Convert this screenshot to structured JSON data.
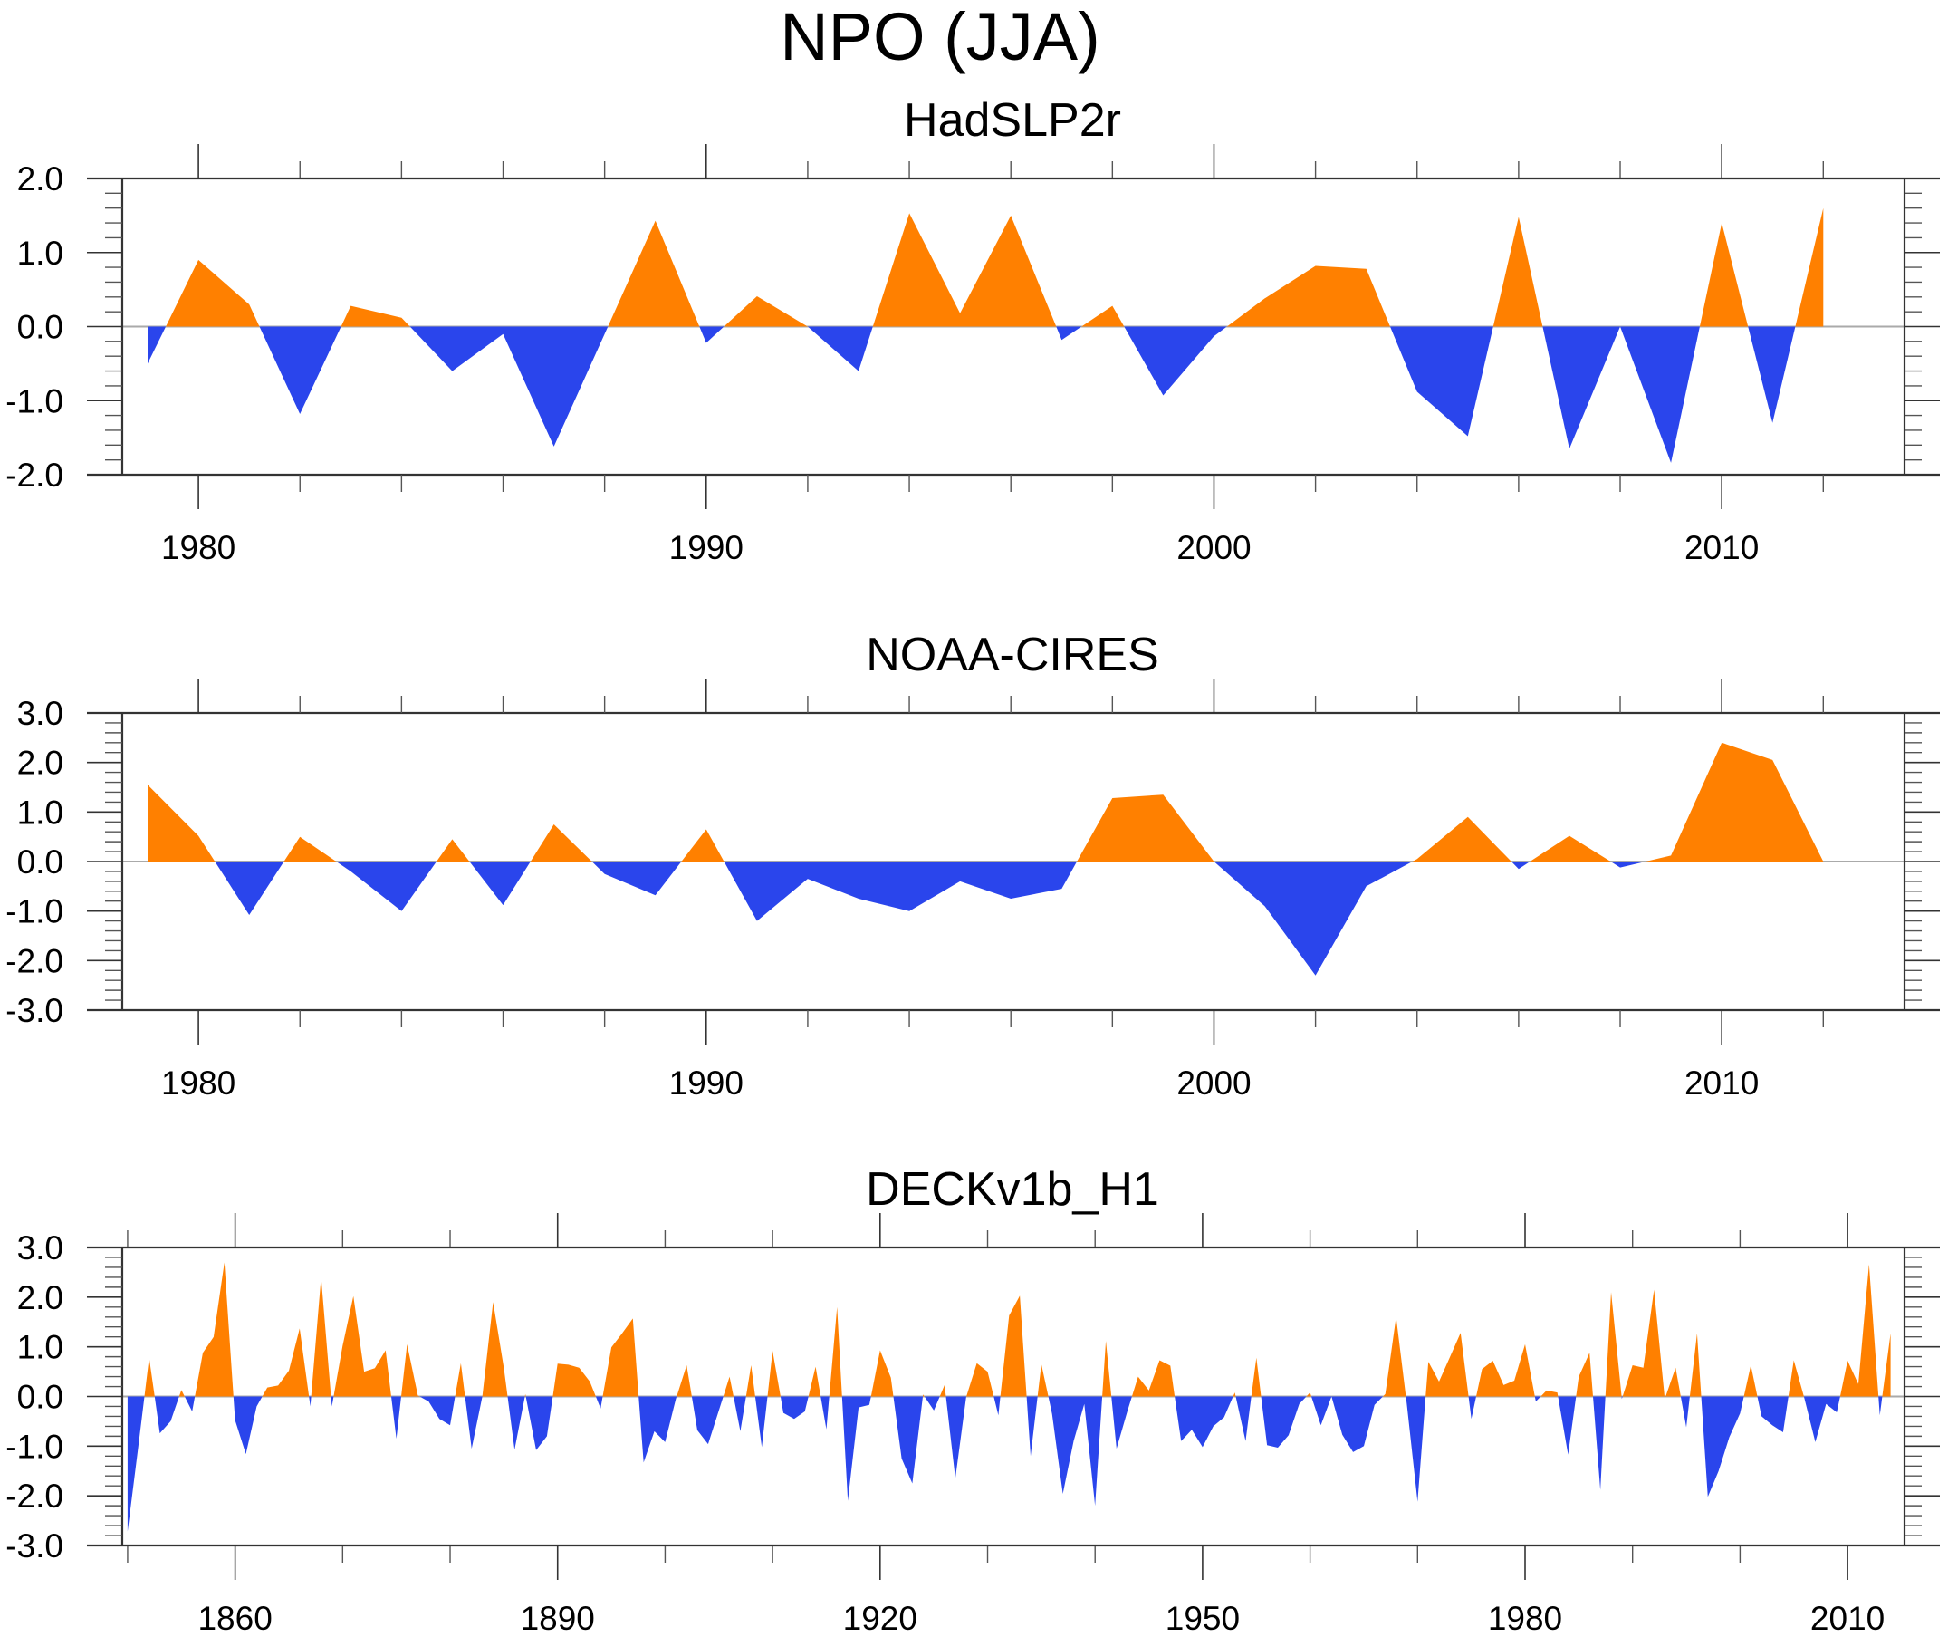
{
  "figure_title": "NPO (JJA)",
  "colors": {
    "positive": "#FF8000",
    "negative": "#2A45EC",
    "axis": "#333333",
    "zero_line": "#AAAAAA"
  },
  "chart_data": [
    {
      "type": "area",
      "title": "HadSLP2r",
      "xlabel": "",
      "ylabel": "",
      "ylim": [
        -2.0,
        2.0
      ],
      "xlim": [
        1978.5,
        2013.6
      ],
      "yticks": [
        "2.0",
        "1.0",
        "0.0",
        "-1.0",
        "-2.0"
      ],
      "ytick_values": [
        2,
        1,
        0,
        -1,
        -2
      ],
      "y_minor_step": 0.2,
      "xticks": [
        "1980",
        "1990",
        "2000",
        "2010"
      ],
      "xtick_values": [
        1980,
        1990,
        2000,
        2010
      ],
      "x_minor_step": 2,
      "grid": false,
      "fill_above_zero": "positive",
      "fill_below_zero": "negative",
      "x": [
        1979,
        1980,
        1981,
        1982,
        1983,
        1984,
        1985,
        1986,
        1987,
        1988,
        1989,
        1990,
        1991,
        1992,
        1993,
        1994,
        1995,
        1996,
        1997,
        1998,
        1999,
        2000,
        2001,
        2002,
        2003,
        2004,
        2005,
        2006,
        2007,
        2008,
        2009,
        2010,
        2011,
        2012
      ],
      "values": [
        -0.5,
        0.9,
        0.3,
        -1.18,
        0.28,
        0.12,
        -0.6,
        -0.1,
        -1.62,
        -0.1,
        1.43,
        -0.22,
        0.41,
        0.0,
        -0.6,
        1.53,
        0.18,
        1.5,
        -0.18,
        0.28,
        -0.93,
        -0.13,
        0.38,
        0.82,
        0.78,
        -0.88,
        -1.48,
        1.48,
        -1.65,
        0.0,
        -1.84,
        1.4,
        -1.3,
        1.6
      ]
    },
    {
      "type": "area",
      "title": "NOAA-CIRES",
      "xlabel": "",
      "ylabel": "",
      "ylim": [
        -3.0,
        3.0
      ],
      "xlim": [
        1978.5,
        2013.6
      ],
      "yticks": [
        "3.0",
        "2.0",
        "1.0",
        "0.0",
        "-1.0",
        "-2.0",
        "-3.0"
      ],
      "ytick_values": [
        3,
        2,
        1,
        0,
        -1,
        -2,
        -3
      ],
      "y_minor_step": 0.2,
      "xticks": [
        "1980",
        "1990",
        "2000",
        "2010"
      ],
      "xtick_values": [
        1980,
        1990,
        2000,
        2010
      ],
      "x_minor_step": 2,
      "grid": false,
      "fill_above_zero": "positive",
      "fill_below_zero": "negative",
      "x": [
        1979,
        1980,
        1981,
        1982,
        1983,
        1984,
        1985,
        1986,
        1987,
        1988,
        1989,
        1990,
        1991,
        1992,
        1993,
        1994,
        1995,
        1996,
        1997,
        1998,
        1999,
        2000,
        2001,
        2002,
        2003,
        2004,
        2005,
        2006,
        2007,
        2008,
        2009,
        2010,
        2011,
        2012
      ],
      "values": [
        1.55,
        0.52,
        -1.08,
        0.5,
        -0.2,
        -1.0,
        0.45,
        -0.88,
        0.75,
        -0.25,
        -0.68,
        0.65,
        -1.2,
        -0.35,
        -0.75,
        -1.0,
        -0.4,
        -0.75,
        -0.55,
        1.28,
        1.35,
        0.0,
        -0.9,
        -2.3,
        -0.5,
        0.05,
        0.9,
        -0.15,
        0.52,
        -0.12,
        0.12,
        2.4,
        2.05,
        0.0
      ]
    },
    {
      "type": "area",
      "title": "DECKv1b_H1",
      "xlabel": "",
      "ylabel": "",
      "ylim": [
        -3.0,
        3.0
      ],
      "xlim": [
        1849.5,
        2015.3
      ],
      "yticks": [
        "3.0",
        "2.0",
        "1.0",
        "0.0",
        "-1.0",
        "-2.0",
        "-3.0"
      ],
      "ytick_values": [
        3,
        2,
        1,
        0,
        -1,
        -2,
        -3
      ],
      "y_minor_step": 0.2,
      "xticks": [
        "1860",
        "1890",
        "1920",
        "1950",
        "1980",
        "2010"
      ],
      "xtick_values": [
        1860,
        1890,
        1920,
        1950,
        1980,
        2010
      ],
      "x_minor_step": 10,
      "grid": false,
      "fill_above_zero": "positive",
      "fill_below_zero": "negative",
      "x_start": 1850,
      "x_end": 2014,
      "values": [
        -2.72,
        -1.0,
        0.78,
        -0.74,
        -0.5,
        0.13,
        -0.3,
        0.88,
        1.2,
        2.7,
        -0.48,
        -1.16,
        -0.2,
        0.18,
        0.22,
        0.52,
        1.37,
        -0.2,
        2.4,
        -0.2,
        1.02,
        2.02,
        0.5,
        0.57,
        0.93,
        -0.85,
        1.05,
        0.02,
        -0.1,
        -0.45,
        -0.58,
        0.67,
        -1.05,
        0.0,
        1.9,
        0.57,
        -1.07,
        0.05,
        -1.08,
        -0.8,
        0.66,
        0.64,
        0.58,
        0.3,
        -0.24,
        0.99,
        1.27,
        1.57,
        -1.33,
        -0.7,
        -0.92,
        -0.05,
        0.63,
        -0.68,
        -0.96,
        -0.28,
        0.4,
        -0.7,
        0.63,
        -1.02,
        0.92,
        -0.33,
        -0.45,
        -0.3,
        0.6,
        -0.66,
        1.8,
        -2.1,
        -0.22,
        -0.17,
        0.93,
        0.38,
        -1.25,
        -1.75,
        0.04,
        -0.28,
        0.23,
        -1.65,
        -0.02,
        0.67,
        0.5,
        -0.38,
        1.63,
        2.03,
        -1.2,
        0.65,
        -0.35,
        -1.96,
        -0.9,
        -0.15,
        -2.2,
        1.12,
        -1.05,
        -0.3,
        0.4,
        0.12,
        0.73,
        0.62,
        -0.9,
        -0.67,
        -1.02,
        -0.6,
        -0.42,
        0.08,
        -0.9,
        0.78,
        -0.98,
        -1.03,
        -0.78,
        -0.15,
        0.08,
        -0.58,
        0.0,
        -0.77,
        -1.12,
        -1.0,
        -0.17,
        0.05,
        1.6,
        -0.15,
        -2.12,
        0.7,
        0.3,
        0.79,
        1.28,
        -0.45,
        0.55,
        0.72,
        0.23,
        0.32,
        1.05,
        -0.1,
        0.12,
        0.08,
        -1.17,
        0.4,
        0.88,
        -1.88,
        2.1,
        -0.05,
        0.63,
        0.58,
        2.15,
        -0.05,
        0.58,
        -0.62,
        1.27,
        -2.02,
        -1.5,
        -0.82,
        -0.34,
        0.63,
        -0.4,
        -0.58,
        -0.72,
        0.73,
        -0.05,
        -0.92,
        -0.15,
        -0.32,
        0.72,
        0.25,
        2.66,
        -0.38,
        1.27
      ]
    }
  ]
}
